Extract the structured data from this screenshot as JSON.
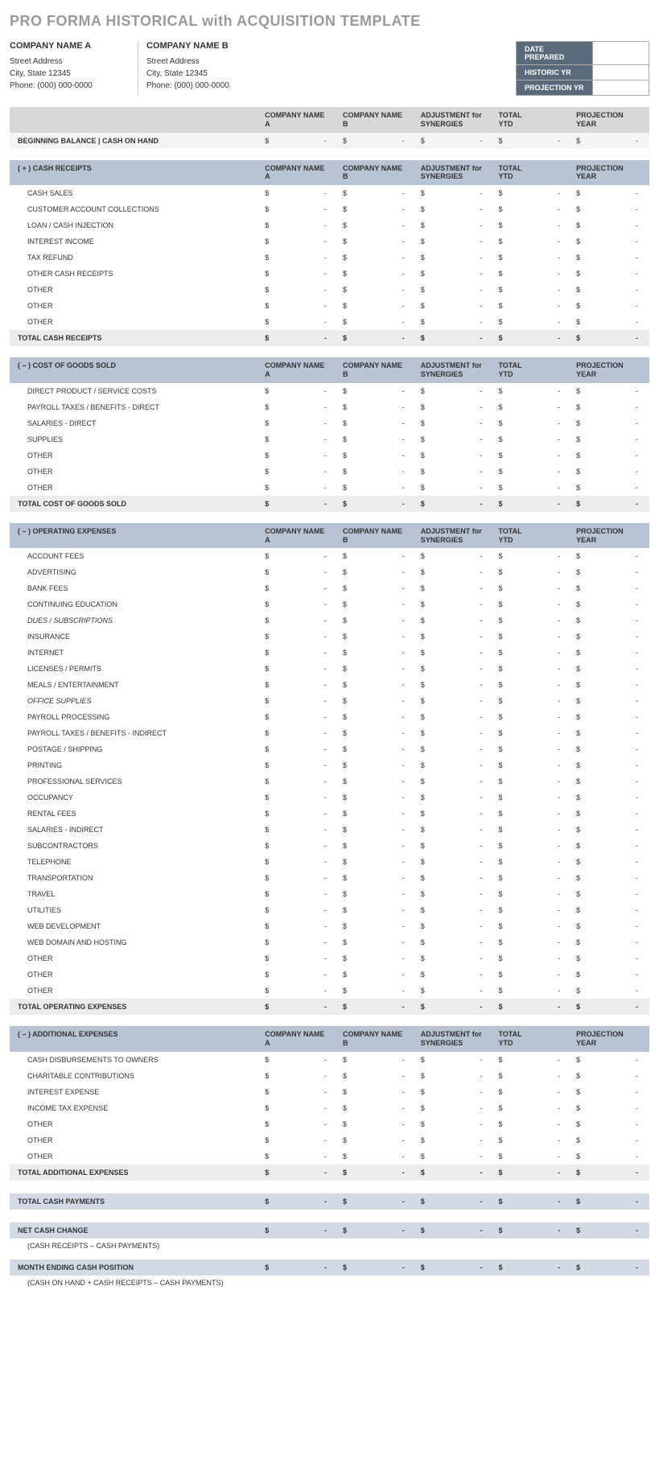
{
  "title": "PRO FORMA HISTORICAL with ACQUISITION TEMPLATE",
  "companies": [
    {
      "name": "COMPANY NAME A",
      "street": "Street Address",
      "city": "City, State  12345",
      "phone": "Phone: (000) 000-0000"
    },
    {
      "name": "COMPANY NAME B",
      "street": "Street Address",
      "city": "City, State  12345",
      "phone": "Phone: (000) 000-0000"
    }
  ],
  "meta": [
    {
      "label": "DATE PREPARED",
      "value": ""
    },
    {
      "label": "HISTORIC YR",
      "value": ""
    },
    {
      "label": "PROJECTION YR",
      "value": ""
    }
  ],
  "columns": [
    "COMPANY NAME A",
    "COMPANY NAME B",
    "ADJUSTMENT for SYNERGIES",
    "TOTAL YTD",
    "PROJECTION YEAR"
  ],
  "currency": "$",
  "dash": "-",
  "sections": [
    {
      "header_style": "gray",
      "header_label": "",
      "rows": [
        {
          "label": "BEGINNING BALANCE | CASH ON HAND",
          "style": "alt bold"
        }
      ]
    },
    {
      "header_style": "blue",
      "header_label": "( + )  CASH RECEIPTS",
      "rows": [
        {
          "label": "CASH SALES",
          "style": "indent"
        },
        {
          "label": "CUSTOMER ACCOUNT COLLECTIONS",
          "style": "indent"
        },
        {
          "label": "LOAN / CASH INJECTION",
          "style": "indent"
        },
        {
          "label": "INTEREST INCOME",
          "style": "indent"
        },
        {
          "label": "TAX REFUND",
          "style": "indent"
        },
        {
          "label": "OTHER CASH RECEIPTS",
          "style": "indent"
        },
        {
          "label": "OTHER",
          "style": "indent"
        },
        {
          "label": "OTHER",
          "style": "indent"
        },
        {
          "label": "OTHER",
          "style": "indent"
        },
        {
          "label": "TOTAL CASH RECEIPTS",
          "style": "total"
        }
      ]
    },
    {
      "header_style": "blue",
      "header_label": "( – )  COST OF GOODS SOLD",
      "rows": [
        {
          "label": "DIRECT PRODUCT / SERVICE COSTS",
          "style": "indent"
        },
        {
          "label": "PAYROLL TAXES / BENEFITS - DIRECT",
          "style": "indent"
        },
        {
          "label": "SALARIES - DIRECT",
          "style": "indent"
        },
        {
          "label": "SUPPLIES",
          "style": "indent"
        },
        {
          "label": "OTHER",
          "style": "indent"
        },
        {
          "label": "OTHER",
          "style": "indent"
        },
        {
          "label": "OTHER",
          "style": "indent"
        },
        {
          "label": "TOTAL COST OF GOODS SOLD",
          "style": "total"
        }
      ]
    },
    {
      "header_style": "blue",
      "header_label": "( – )  OPERATING EXPENSES",
      "rows": [
        {
          "label": "ACCOUNT FEES",
          "style": "indent"
        },
        {
          "label": "ADVERTISING",
          "style": "indent"
        },
        {
          "label": "BANK FEES",
          "style": "indent"
        },
        {
          "label": "CONTINUING EDUCATION",
          "style": "indent"
        },
        {
          "label": "DUES / SUBSCRIPTIONS",
          "style": "indent italic"
        },
        {
          "label": "INSURANCE",
          "style": "indent"
        },
        {
          "label": "INTERNET",
          "style": "indent"
        },
        {
          "label": "LICENSES / PERMITS",
          "style": "indent"
        },
        {
          "label": "MEALS / ENTERTAINMENT",
          "style": "indent"
        },
        {
          "label": "OFFICE SUPPLIES",
          "style": "indent italic"
        },
        {
          "label": "PAYROLL PROCESSING",
          "style": "indent"
        },
        {
          "label": "PAYROLL TAXES / BENEFITS - INDIRECT",
          "style": "indent"
        },
        {
          "label": "POSTAGE / SHIPPING",
          "style": "indent"
        },
        {
          "label": "PRINTING",
          "style": "indent"
        },
        {
          "label": "PROFESSIONAL SERVICES",
          "style": "indent"
        },
        {
          "label": "OCCUPANCY",
          "style": "indent"
        },
        {
          "label": "RENTAL FEES",
          "style": "indent"
        },
        {
          "label": "SALARIES - INDIRECT",
          "style": "indent"
        },
        {
          "label": "SUBCONTRACTORS",
          "style": "indent"
        },
        {
          "label": "TELEPHONE",
          "style": "indent"
        },
        {
          "label": "TRANSPORTATION",
          "style": "indent"
        },
        {
          "label": "TRAVEL",
          "style": "indent"
        },
        {
          "label": "UTILITIES",
          "style": "indent"
        },
        {
          "label": "WEB DEVELOPMENT",
          "style": "indent"
        },
        {
          "label": "WEB DOMAIN AND HOSTING",
          "style": "indent"
        },
        {
          "label": "OTHER",
          "style": "indent"
        },
        {
          "label": "OTHER",
          "style": "indent"
        },
        {
          "label": "OTHER",
          "style": "indent"
        },
        {
          "label": "TOTAL OPERATING EXPENSES",
          "style": "total"
        }
      ]
    },
    {
      "header_style": "blue",
      "header_label": "( – )  ADDITIONAL EXPENSES",
      "rows": [
        {
          "label": "CASH DISBURSEMENTS TO OWNERS",
          "style": "indent"
        },
        {
          "label": "CHARITABLE CONTRIBUTIONS",
          "style": "indent"
        },
        {
          "label": "INTEREST EXPENSE",
          "style": "indent"
        },
        {
          "label": "INCOME TAX EXPENSE",
          "style": "indent"
        },
        {
          "label": "OTHER",
          "style": "indent"
        },
        {
          "label": "OTHER",
          "style": "indent"
        },
        {
          "label": "OTHER",
          "style": "indent"
        },
        {
          "label": "TOTAL ADDITIONAL EXPENSES",
          "style": "total"
        },
        {
          "label": "",
          "style": "spacer"
        },
        {
          "label": "TOTAL CASH PAYMENTS",
          "style": "total-blue"
        },
        {
          "label": "",
          "style": "spacer"
        },
        {
          "label": "NET CASH CHANGE",
          "style": "total-blue"
        },
        {
          "label": "(CASH RECEIPTS – CASH PAYMENTS)",
          "style": "footnote"
        },
        {
          "label": "MONTH ENDING CASH POSITION",
          "style": "total-blue"
        },
        {
          "label": "(CASH ON HAND + CASH RECEIPTS – CASH PAYMENTS)",
          "style": "footnote"
        }
      ]
    }
  ],
  "colors": {
    "title": "#9a9a9a",
    "header_gray": "#d8d8d8",
    "header_blue": "#b8c3d4",
    "row_alt": "#f5f5f5",
    "row_total": "#ececec",
    "row_total_blue": "#d3dae6",
    "meta_label_bg": "#5a6a7a"
  }
}
